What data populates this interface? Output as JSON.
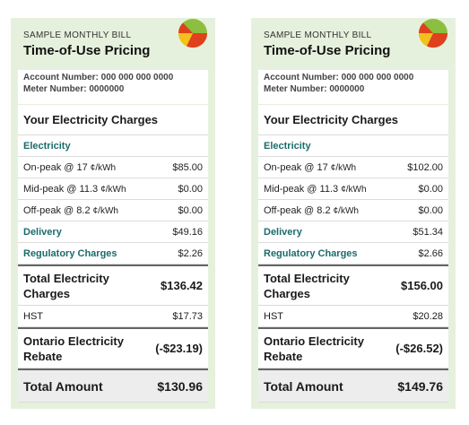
{
  "bills": [
    {
      "sample_label": "SAMPLE MONTHLY BILL",
      "title": "Time-of-Use Pricing",
      "account_number": "Account Number: 000 000 000 0000",
      "meter_number": "Meter Number: 0000000",
      "charges_heading": "Your Electricity Charges",
      "electricity_label": "Electricity",
      "on_peak_label": "On-peak @ 17",
      "on_peak_unit": "¢/kWh",
      "on_peak_value": "$85.00",
      "mid_peak_label": "Mid-peak @ 11.3",
      "mid_peak_unit": "¢/kWh",
      "mid_peak_value": "$0.00",
      "off_peak_label": "Off-peak @ 8.2",
      "off_peak_unit": "¢/kWh",
      "off_peak_value": "$0.00",
      "delivery_label": "Delivery",
      "delivery_value": "$49.16",
      "regulatory_label": "Regulatory Charges",
      "regulatory_value": "$2.26",
      "total_electricity_label": "Total Electricity Charges",
      "total_electricity_value": "$136.42",
      "hst_label": "HST",
      "hst_value": "$17.73",
      "rebate_label": "Ontario Electricity Rebate",
      "rebate_value": "(-$23.19)",
      "total_label": "Total Amount",
      "total_value": "$130.96"
    },
    {
      "sample_label": "SAMPLE MONTHLY BILL",
      "title": "Time-of-Use Pricing",
      "account_number": "Account Number: 000 000 000 0000",
      "meter_number": "Meter Number: 0000000",
      "charges_heading": "Your Electricity Charges",
      "electricity_label": "Electricity",
      "on_peak_label": "On-peak @ 17",
      "on_peak_unit": "¢/kWh",
      "on_peak_value": "$102.00",
      "mid_peak_label": "Mid-peak @ 11.3",
      "mid_peak_unit": "¢/kWh",
      "mid_peak_value": "$0.00",
      "off_peak_label": "Off-peak @ 8.2",
      "off_peak_unit": "¢/kWh",
      "off_peak_value": "$0.00",
      "delivery_label": "Delivery",
      "delivery_value": "$51.34",
      "regulatory_label": "Regulatory Charges",
      "regulatory_value": "$2.66",
      "total_electricity_label": "Total Electricity Charges",
      "total_electricity_value": "$156.00",
      "hst_label": "HST",
      "hst_value": "$20.28",
      "rebate_label": "Ontario Electricity Rebate",
      "rebate_value": "(-$26.52)",
      "total_label": "Total Amount",
      "total_value": "$149.76"
    }
  ],
  "colors": {
    "card_bg": "#e6f1dd",
    "section_teal": "#1b6b6b",
    "pie_green": "#8cbf3f",
    "pie_yellow": "#f2c21a",
    "pie_red": "#e0401c"
  },
  "icons": {
    "pie": "time-of-use-pie-icon"
  }
}
